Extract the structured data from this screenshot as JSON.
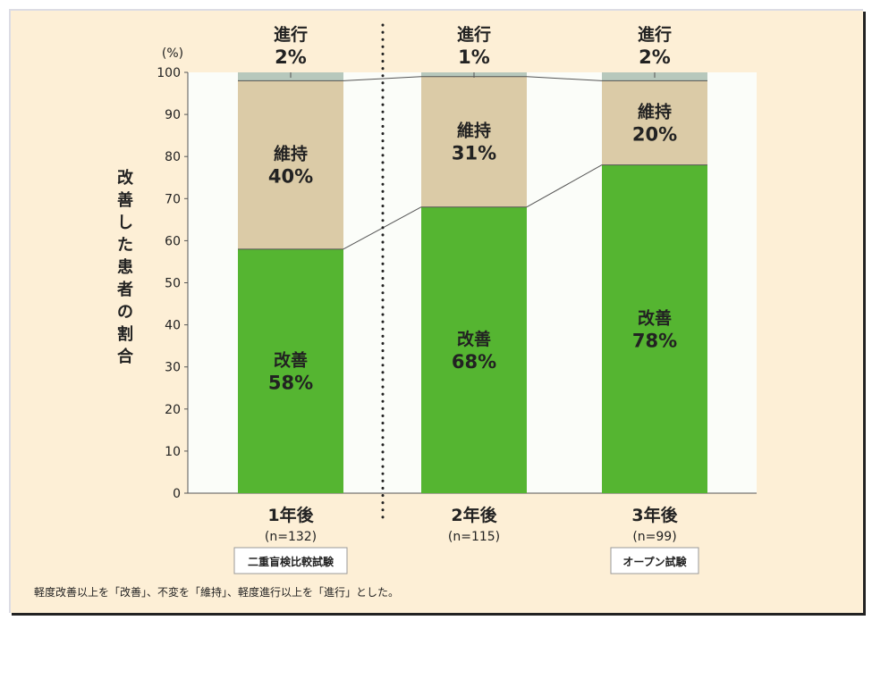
{
  "chart_data": {
    "type": "bar",
    "stacked": true,
    "ylabel": "改善した患者の割合",
    "yunit": "(%)",
    "ylim": [
      0,
      100
    ],
    "yticks": [
      0,
      10,
      20,
      30,
      40,
      50,
      60,
      70,
      80,
      90,
      100
    ],
    "categories": [
      "1年後",
      "2年後",
      "3年後"
    ],
    "n_labels": [
      "(n=132)",
      "(n=115)",
      "(n=99)"
    ],
    "series": [
      {
        "name": "改善",
        "values": [
          58,
          68,
          78
        ],
        "labels": [
          "58%",
          "68%",
          "78%"
        ],
        "color": "#55b531"
      },
      {
        "name": "維持",
        "values": [
          40,
          31,
          20
        ],
        "labels": [
          "40%",
          "31%",
          "20%"
        ],
        "color": "#dbcba7"
      },
      {
        "name": "進行",
        "values": [
          2,
          1,
          2
        ],
        "labels": [
          "2%",
          "1%",
          "2%"
        ],
        "color": "#b7c8bc"
      }
    ],
    "groups": [
      {
        "label": "二重盲検比較試験",
        "category_index": 0
      },
      {
        "label": "オープン試験",
        "category_index": 2
      }
    ],
    "footnote": "軽度改善以上を「改善」、不変を「維持」、軽度進行以上を「進行」とした。"
  }
}
